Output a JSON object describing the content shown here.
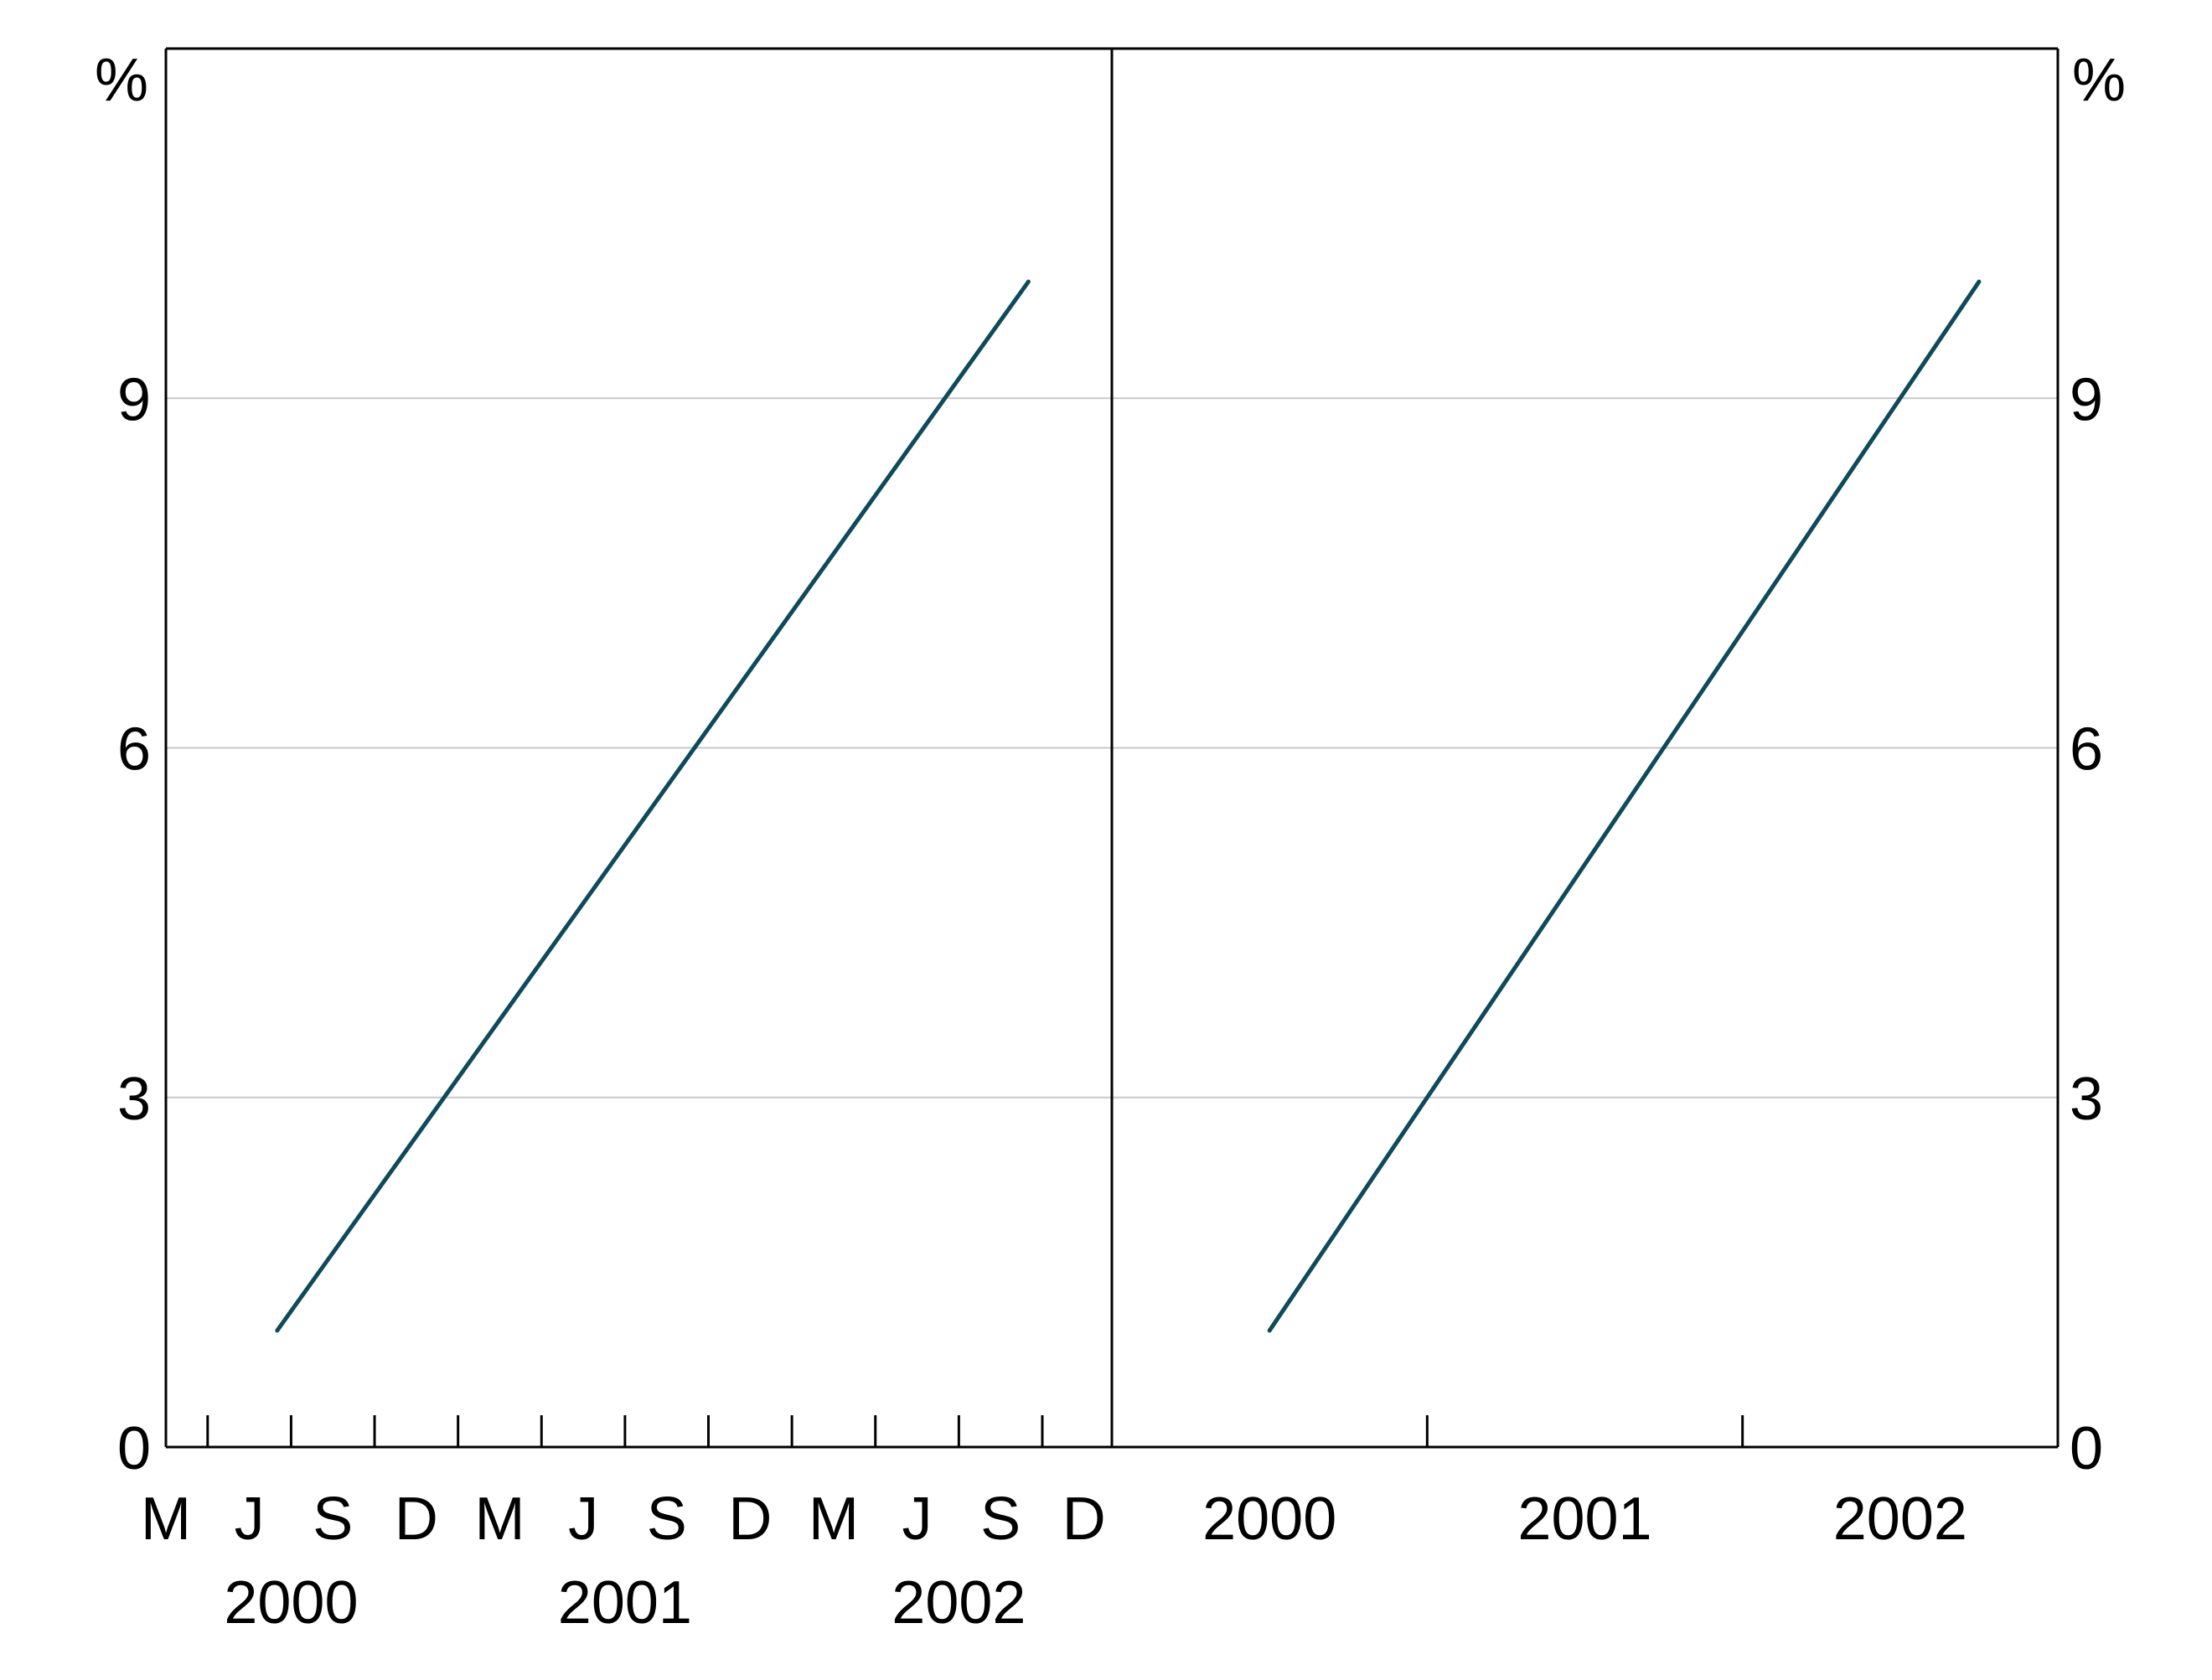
{
  "chart_data": [
    {
      "type": "line",
      "panel": "left",
      "y_unit_label": "%",
      "ylim": [
        0,
        12
      ],
      "yticks": [
        0,
        3,
        6,
        9
      ],
      "grid": true,
      "x_month_labels": [
        "M",
        "J",
        "S",
        "D",
        "M",
        "J",
        "S",
        "D",
        "M",
        "J",
        "S",
        "D"
      ],
      "x_year_labels": [
        "2000",
        "2001",
        "2002"
      ],
      "x_range": [
        "2000-02",
        "2002-12"
      ],
      "series": [
        {
          "x": [
            "2000-06",
            "2002-09"
          ],
          "y": [
            1.0,
            10.0
          ]
        }
      ]
    },
    {
      "type": "line",
      "panel": "right",
      "y_unit_label": "%",
      "ylim": [
        0,
        12
      ],
      "yticks": [
        0,
        3,
        6,
        9
      ],
      "grid": true,
      "x_year_labels": [
        "2000",
        "2001",
        "2002"
      ],
      "x_range": [
        1999.5,
        2002.5
      ],
      "series": [
        {
          "x": [
            2000.0,
            2002.25
          ],
          "y": [
            1.0,
            10.0
          ]
        }
      ]
    }
  ],
  "colors": {
    "line": "#0f4a5a",
    "grid": "#c8c8c8",
    "axis": "#000000"
  }
}
